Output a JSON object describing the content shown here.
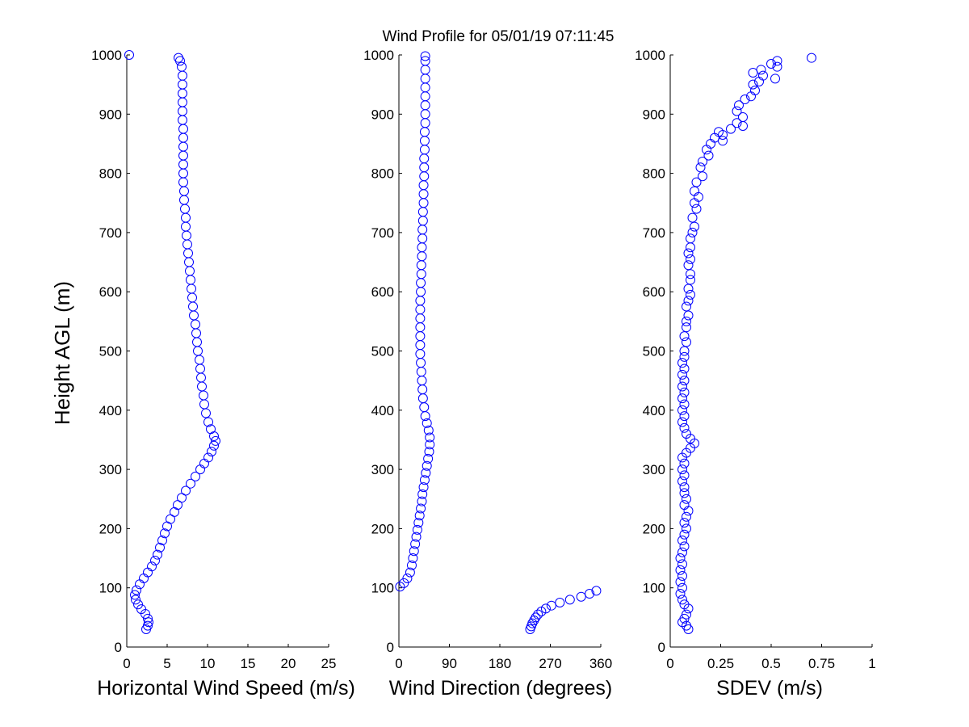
{
  "title": "Wind Profile for  05/01/19 07:11:45",
  "ylabel": "Height AGL (m)",
  "colors": {
    "marker": "#0000ff",
    "axis": "#000000",
    "background": "#ffffff"
  },
  "chart_data": [
    {
      "type": "scatter",
      "xlabel": "Horizontal Wind Speed (m/s)",
      "xlim": [
        0,
        25
      ],
      "ylim": [
        0,
        1000
      ],
      "xticks": [
        "0",
        "5",
        "10",
        "15",
        "20",
        "25"
      ],
      "yticks": [
        "0",
        "100",
        "200",
        "300",
        "400",
        "500",
        "600",
        "700",
        "800",
        "900",
        "1000"
      ],
      "marker": "open-circle",
      "grid": false,
      "points": [
        [
          0.3,
          1000
        ],
        [
          6.4,
          995
        ],
        [
          6.6,
          990
        ],
        [
          6.8,
          980
        ],
        [
          6.9,
          965
        ],
        [
          6.9,
          950
        ],
        [
          6.9,
          935
        ],
        [
          6.9,
          920
        ],
        [
          6.9,
          905
        ],
        [
          6.9,
          890
        ],
        [
          7.0,
          875
        ],
        [
          7.0,
          860
        ],
        [
          7.0,
          845
        ],
        [
          7.0,
          830
        ],
        [
          7.0,
          815
        ],
        [
          7.0,
          800
        ],
        [
          7.0,
          785
        ],
        [
          7.1,
          770
        ],
        [
          7.1,
          755
        ],
        [
          7.2,
          740
        ],
        [
          7.3,
          725
        ],
        [
          7.3,
          710
        ],
        [
          7.4,
          695
        ],
        [
          7.5,
          680
        ],
        [
          7.6,
          665
        ],
        [
          7.7,
          650
        ],
        [
          7.8,
          635
        ],
        [
          7.9,
          620
        ],
        [
          8.0,
          605
        ],
        [
          8.1,
          590
        ],
        [
          8.2,
          575
        ],
        [
          8.3,
          560
        ],
        [
          8.5,
          545
        ],
        [
          8.6,
          530
        ],
        [
          8.7,
          515
        ],
        [
          8.8,
          500
        ],
        [
          9.0,
          485
        ],
        [
          9.1,
          470
        ],
        [
          9.2,
          455
        ],
        [
          9.3,
          440
        ],
        [
          9.5,
          425
        ],
        [
          9.6,
          410
        ],
        [
          9.8,
          395
        ],
        [
          10.1,
          380
        ],
        [
          10.4,
          368
        ],
        [
          10.8,
          356
        ],
        [
          11.0,
          348
        ],
        [
          10.8,
          340
        ],
        [
          10.5,
          330
        ],
        [
          10.1,
          320
        ],
        [
          9.6,
          310
        ],
        [
          9.1,
          300
        ],
        [
          8.5,
          288
        ],
        [
          7.9,
          276
        ],
        [
          7.3,
          264
        ],
        [
          6.8,
          252
        ],
        [
          6.3,
          240
        ],
        [
          5.9,
          228
        ],
        [
          5.4,
          216
        ],
        [
          5.0,
          204
        ],
        [
          4.7,
          192
        ],
        [
          4.4,
          180
        ],
        [
          4.1,
          168
        ],
        [
          3.8,
          156
        ],
        [
          3.5,
          146
        ],
        [
          3.1,
          136
        ],
        [
          2.6,
          126
        ],
        [
          2.1,
          116
        ],
        [
          1.6,
          106
        ],
        [
          1.2,
          96
        ],
        [
          1.0,
          88
        ],
        [
          1.1,
          80
        ],
        [
          1.4,
          72
        ],
        [
          1.8,
          64
        ],
        [
          2.3,
          56
        ],
        [
          2.6,
          48
        ],
        [
          2.7,
          42
        ],
        [
          2.6,
          36
        ],
        [
          2.4,
          30
        ]
      ]
    },
    {
      "type": "scatter",
      "xlabel": "Wind Direction (degrees)",
      "xlim": [
        0,
        360
      ],
      "ylim": [
        0,
        1000
      ],
      "xticks": [
        "0",
        "90",
        "180",
        "270",
        "360"
      ],
      "yticks": [
        "0",
        "100",
        "200",
        "300",
        "400",
        "500",
        "600",
        "700",
        "800",
        "900",
        "1000"
      ],
      "marker": "open-circle",
      "grid": false,
      "points": [
        [
          47,
          998
        ],
        [
          47,
          990
        ],
        [
          47,
          975
        ],
        [
          47,
          960
        ],
        [
          47,
          945
        ],
        [
          47,
          930
        ],
        [
          47,
          915
        ],
        [
          47,
          900
        ],
        [
          47,
          885
        ],
        [
          46,
          870
        ],
        [
          46,
          855
        ],
        [
          46,
          840
        ],
        [
          45,
          825
        ],
        [
          45,
          810
        ],
        [
          45,
          795
        ],
        [
          44,
          780
        ],
        [
          44,
          765
        ],
        [
          44,
          750
        ],
        [
          43,
          735
        ],
        [
          43,
          720
        ],
        [
          42,
          705
        ],
        [
          42,
          690
        ],
        [
          41,
          675
        ],
        [
          41,
          660
        ],
        [
          40,
          645
        ],
        [
          40,
          630
        ],
        [
          39,
          615
        ],
        [
          39,
          600
        ],
        [
          38,
          585
        ],
        [
          38,
          570
        ],
        [
          38,
          555
        ],
        [
          38,
          540
        ],
        [
          38,
          525
        ],
        [
          38,
          510
        ],
        [
          38,
          495
        ],
        [
          39,
          480
        ],
        [
          40,
          465
        ],
        [
          41,
          450
        ],
        [
          42,
          435
        ],
        [
          43,
          420
        ],
        [
          45,
          405
        ],
        [
          47,
          390
        ],
        [
          50,
          378
        ],
        [
          53,
          366
        ],
        [
          55,
          354
        ],
        [
          55,
          342
        ],
        [
          54,
          330
        ],
        [
          52,
          318
        ],
        [
          50,
          306
        ],
        [
          48,
          294
        ],
        [
          46,
          282
        ],
        [
          44,
          270
        ],
        [
          42,
          258
        ],
        [
          41,
          246
        ],
        [
          39,
          234
        ],
        [
          37,
          222
        ],
        [
          35,
          210
        ],
        [
          33,
          198
        ],
        [
          31,
          186
        ],
        [
          29,
          174
        ],
        [
          27,
          162
        ],
        [
          25,
          150
        ],
        [
          23,
          138
        ],
        [
          20,
          126
        ],
        [
          15,
          116
        ],
        [
          9,
          108
        ],
        [
          2,
          102
        ],
        [
          352,
          95
        ],
        [
          340,
          90
        ],
        [
          325,
          85
        ],
        [
          305,
          80
        ],
        [
          287,
          75
        ],
        [
          272,
          70
        ],
        [
          262,
          65
        ],
        [
          254,
          60
        ],
        [
          248,
          55
        ],
        [
          244,
          50
        ],
        [
          241,
          45
        ],
        [
          238,
          40
        ],
        [
          236,
          35
        ],
        [
          234,
          30
        ]
      ]
    },
    {
      "type": "scatter",
      "xlabel": "SDEV  (m/s)",
      "xlim": [
        0,
        1
      ],
      "ylim": [
        0,
        1000
      ],
      "xticks": [
        "0",
        "0.25",
        "0.5",
        "0.75",
        "1"
      ],
      "yticks": [
        "0",
        "100",
        "200",
        "300",
        "400",
        "500",
        "600",
        "700",
        "800",
        "900",
        "1000"
      ],
      "marker": "open-circle",
      "grid": false,
      "points": [
        [
          0.7,
          995
        ],
        [
          0.53,
          990
        ],
        [
          0.5,
          985
        ],
        [
          0.53,
          980
        ],
        [
          0.45,
          975
        ],
        [
          0.41,
          970
        ],
        [
          0.46,
          965
        ],
        [
          0.52,
          960
        ],
        [
          0.44,
          955
        ],
        [
          0.41,
          950
        ],
        [
          0.42,
          940
        ],
        [
          0.4,
          930
        ],
        [
          0.37,
          925
        ],
        [
          0.34,
          915
        ],
        [
          0.33,
          905
        ],
        [
          0.36,
          895
        ],
        [
          0.33,
          885
        ],
        [
          0.36,
          880
        ],
        [
          0.3,
          875
        ],
        [
          0.24,
          870
        ],
        [
          0.26,
          865
        ],
        [
          0.22,
          860
        ],
        [
          0.26,
          855
        ],
        [
          0.2,
          850
        ],
        [
          0.18,
          840
        ],
        [
          0.19,
          830
        ],
        [
          0.16,
          820
        ],
        [
          0.15,
          810
        ],
        [
          0.16,
          795
        ],
        [
          0.13,
          785
        ],
        [
          0.12,
          770
        ],
        [
          0.14,
          760
        ],
        [
          0.12,
          750
        ],
        [
          0.13,
          740
        ],
        [
          0.11,
          725
        ],
        [
          0.12,
          710
        ],
        [
          0.11,
          700
        ],
        [
          0.1,
          690
        ],
        [
          0.1,
          675
        ],
        [
          0.09,
          665
        ],
        [
          0.1,
          655
        ],
        [
          0.09,
          645
        ],
        [
          0.1,
          630
        ],
        [
          0.1,
          620
        ],
        [
          0.09,
          605
        ],
        [
          0.1,
          595
        ],
        [
          0.09,
          585
        ],
        [
          0.08,
          575
        ],
        [
          0.09,
          560
        ],
        [
          0.08,
          550
        ],
        [
          0.08,
          540
        ],
        [
          0.07,
          525
        ],
        [
          0.08,
          515
        ],
        [
          0.07,
          500
        ],
        [
          0.07,
          490
        ],
        [
          0.06,
          480
        ],
        [
          0.07,
          470
        ],
        [
          0.06,
          460
        ],
        [
          0.07,
          450
        ],
        [
          0.06,
          440
        ],
        [
          0.07,
          430
        ],
        [
          0.06,
          420
        ],
        [
          0.07,
          410
        ],
        [
          0.06,
          400
        ],
        [
          0.07,
          390
        ],
        [
          0.06,
          380
        ],
        [
          0.07,
          370
        ],
        [
          0.08,
          360
        ],
        [
          0.1,
          352
        ],
        [
          0.12,
          344
        ],
        [
          0.1,
          336
        ],
        [
          0.08,
          328
        ],
        [
          0.06,
          320
        ],
        [
          0.07,
          310
        ],
        [
          0.06,
          300
        ],
        [
          0.07,
          290
        ],
        [
          0.06,
          280
        ],
        [
          0.07,
          270
        ],
        [
          0.07,
          260
        ],
        [
          0.08,
          250
        ],
        [
          0.07,
          240
        ],
        [
          0.09,
          230
        ],
        [
          0.08,
          220
        ],
        [
          0.07,
          210
        ],
        [
          0.08,
          200
        ],
        [
          0.07,
          190
        ],
        [
          0.06,
          180
        ],
        [
          0.07,
          170
        ],
        [
          0.06,
          160
        ],
        [
          0.05,
          150
        ],
        [
          0.06,
          140
        ],
        [
          0.05,
          130
        ],
        [
          0.06,
          120
        ],
        [
          0.05,
          110
        ],
        [
          0.06,
          100
        ],
        [
          0.05,
          90
        ],
        [
          0.06,
          80
        ],
        [
          0.07,
          72
        ],
        [
          0.09,
          65
        ],
        [
          0.08,
          55
        ],
        [
          0.07,
          48
        ],
        [
          0.06,
          42
        ],
        [
          0.08,
          36
        ],
        [
          0.09,
          30
        ]
      ]
    }
  ]
}
